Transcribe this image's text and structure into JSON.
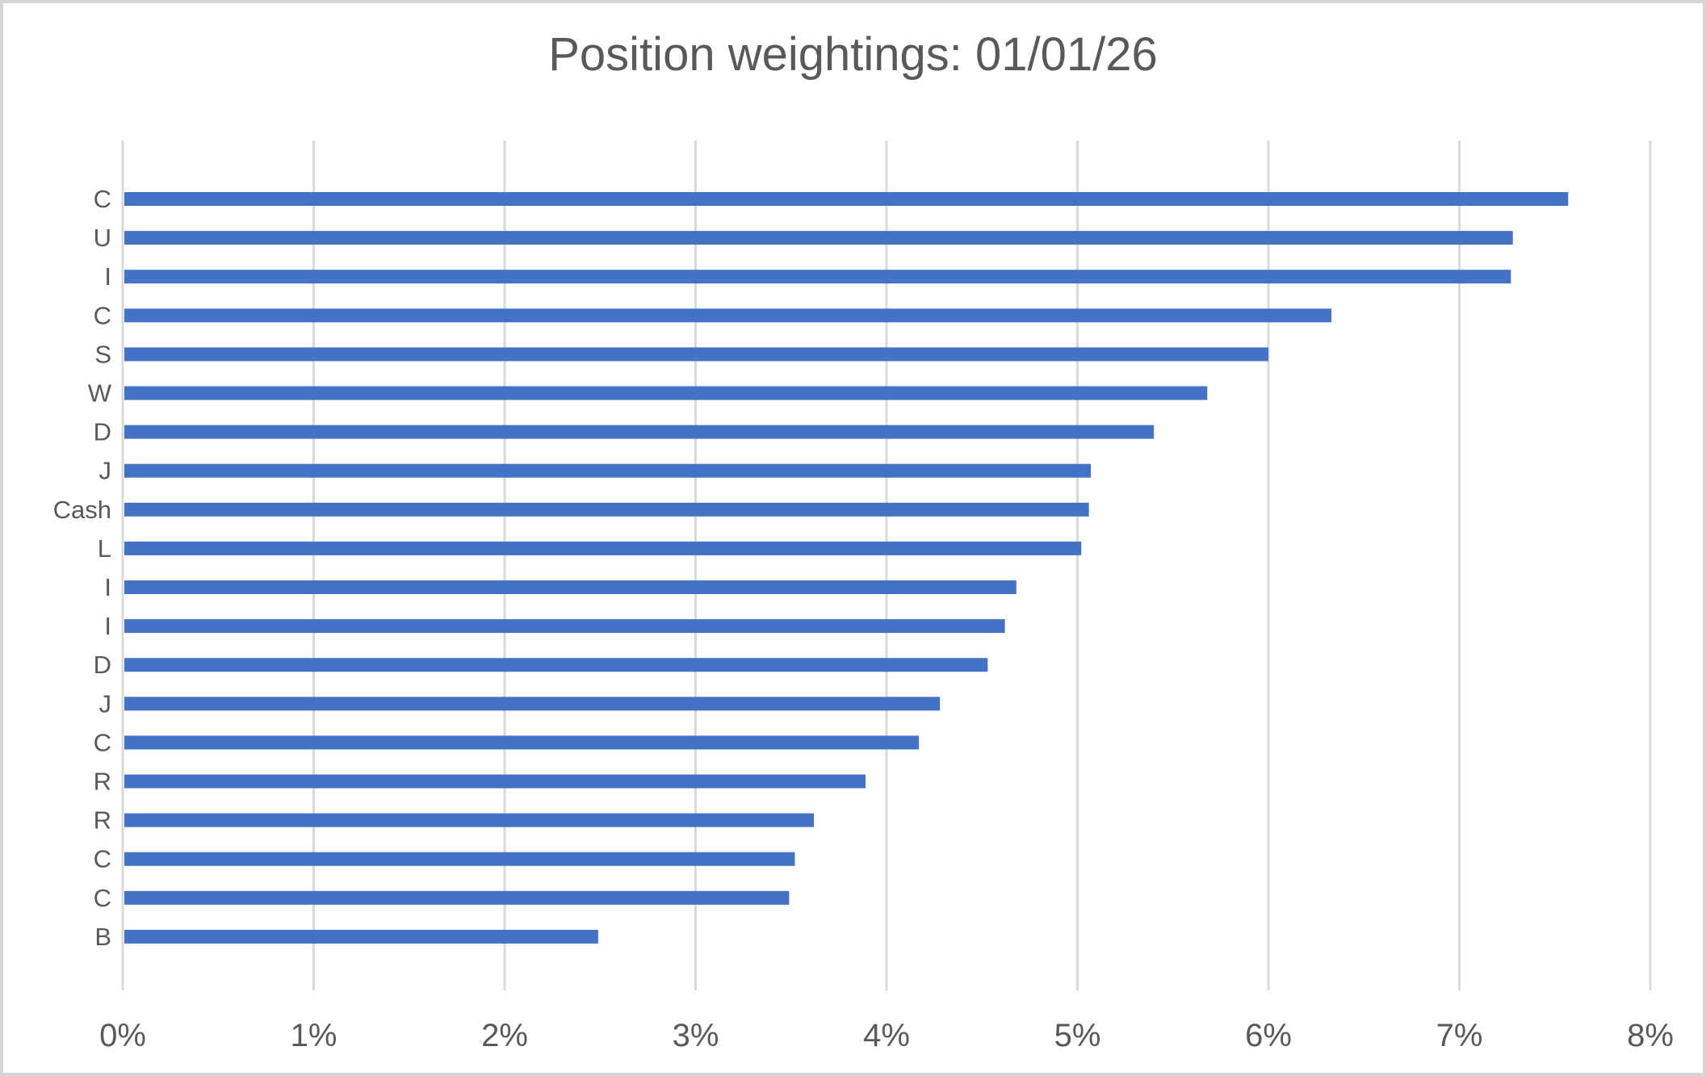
{
  "chart_data": {
    "type": "bar",
    "orientation": "horizontal",
    "title": "Position weightings: 01/01/26",
    "categories": [
      "C",
      "U",
      "I",
      "C",
      "S",
      "W",
      "D",
      "J",
      "Cash",
      "L",
      "I",
      "I",
      "D",
      "J",
      "C",
      "R",
      "R",
      "C",
      "C",
      "B"
    ],
    "values": [
      7.57,
      7.28,
      7.27,
      6.33,
      6.0,
      5.68,
      5.4,
      5.07,
      5.06,
      5.02,
      4.68,
      4.62,
      4.53,
      4.28,
      4.17,
      3.89,
      3.62,
      3.52,
      3.49,
      2.49
    ],
    "value_unit": "%",
    "x_ticks": [
      "0%",
      "1%",
      "2%",
      "3%",
      "4%",
      "5%",
      "6%",
      "7%",
      "8%"
    ],
    "xlim": [
      0,
      8
    ],
    "xlabel": "",
    "ylabel": "",
    "grid": true,
    "legend": false,
    "sort_order": "descending",
    "colors": {
      "bar": "#4472C4",
      "gridline": "#D9D9D9",
      "axis_text": "#595959",
      "title_text": "#595959"
    }
  }
}
